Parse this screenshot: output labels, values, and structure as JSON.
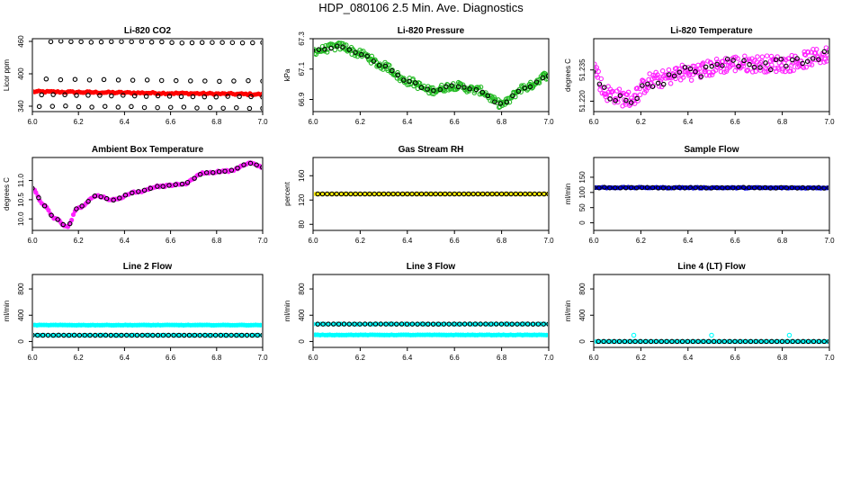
{
  "page_title": "HDP_080106  2.5 Min. Ave. Diagnostics",
  "chart_data": [
    {
      "type": "scatter",
      "title": "Li-820 CO2",
      "ylabel": "Licor ppm",
      "xlim": [
        6.0,
        7.0
      ],
      "ylim": [
        330,
        465
      ],
      "xticks": [
        "6.0",
        "6.2",
        "6.4",
        "6.6",
        "6.8",
        "7.0"
      ],
      "yticks": [
        {
          "v": 340,
          "label": "340"
        },
        {
          "v": 400,
          "label": "400"
        },
        {
          "v": 460,
          "label": "460"
        }
      ],
      "series": [
        {
          "name": "co2-main",
          "color": "#ff0000",
          "style": "filled",
          "gen": {
            "kind": "line",
            "x0": 6.0,
            "x1": 7.0,
            "y0": 367,
            "y1": 362,
            "noise": 1.5,
            "n": 110
          }
        },
        {
          "name": "co2-top",
          "color": "#000000",
          "style": "open",
          "gen": {
            "kind": "line",
            "x0": 6.08,
            "x1": 7.0,
            "y0": 460,
            "y1": 457,
            "noise": 1,
            "n": 22
          }
        },
        {
          "name": "co2-upper",
          "color": "#000000",
          "style": "open",
          "gen": {
            "kind": "line",
            "x0": 6.06,
            "x1": 7.0,
            "y0": 390,
            "y1": 386,
            "noise": 1,
            "n": 16
          }
        },
        {
          "name": "co2-mid",
          "color": "#000000",
          "style": "open",
          "gen": {
            "kind": "line",
            "x0": 6.04,
            "x1": 7.0,
            "y0": 361,
            "y1": 357,
            "noise": 1,
            "n": 20
          }
        },
        {
          "name": "co2-low",
          "color": "#000000",
          "style": "open",
          "gen": {
            "kind": "line",
            "x0": 6.03,
            "x1": 7.0,
            "y0": 340,
            "y1": 336,
            "noise": 1,
            "n": 18
          }
        }
      ]
    },
    {
      "type": "scatter",
      "title": "Li-820 Pressure",
      "ylabel": "kPa",
      "xlim": [
        6.0,
        7.0
      ],
      "ylim": [
        66.82,
        67.3
      ],
      "xticks": [
        "6.0",
        "6.2",
        "6.4",
        "6.6",
        "6.8",
        "7.0"
      ],
      "yticks": [
        {
          "v": 66.9,
          "label": "66.9"
        },
        {
          "v": 67.1,
          "label": "67.1"
        },
        {
          "v": 67.3,
          "label": "67.3"
        }
      ],
      "series": [
        {
          "name": "pressure-green",
          "color": "#22bb22",
          "style": "open",
          "gen": {
            "kind": "curve",
            "nodes": [
              [
                6.0,
                67.22
              ],
              [
                6.12,
                67.25
              ],
              [
                6.2,
                67.2
              ],
              [
                6.3,
                67.12
              ],
              [
                6.4,
                67.02
              ],
              [
                6.5,
                66.96
              ],
              [
                6.6,
                66.99
              ],
              [
                6.7,
                66.96
              ],
              [
                6.8,
                66.87
              ],
              [
                6.9,
                66.98
              ],
              [
                7.0,
                67.06
              ]
            ],
            "spread": 0.025,
            "n": 260
          }
        },
        {
          "name": "pressure-black",
          "color": "#000000",
          "style": "open",
          "gen": {
            "kind": "curve",
            "nodes": [
              [
                6.0,
                67.22
              ],
              [
                6.12,
                67.25
              ],
              [
                6.2,
                67.2
              ],
              [
                6.3,
                67.12
              ],
              [
                6.4,
                67.02
              ],
              [
                6.5,
                66.96
              ],
              [
                6.6,
                66.99
              ],
              [
                6.7,
                66.96
              ],
              [
                6.8,
                66.87
              ],
              [
                6.9,
                66.98
              ],
              [
                7.0,
                67.06
              ]
            ],
            "spread": 0.006,
            "n": 40
          }
        }
      ]
    },
    {
      "type": "scatter",
      "title": "Li-820 Temperature",
      "ylabel": "degrees C",
      "xlim": [
        6.0,
        7.0
      ],
      "ylim": [
        51.215,
        51.25
      ],
      "xticks": [
        "6.0",
        "6.2",
        "6.4",
        "6.6",
        "6.8",
        "7.0"
      ],
      "yticks": [
        {
          "v": 51.22,
          "label": "51.220"
        },
        {
          "v": 51.235,
          "label": "51.235"
        }
      ],
      "series": [
        {
          "name": "temp-magenta",
          "color": "#ff22ff",
          "style": "open",
          "gen": {
            "kind": "curve",
            "nodes": [
              [
                6.0,
                51.236
              ],
              [
                6.05,
                51.224
              ],
              [
                6.15,
                51.221
              ],
              [
                6.25,
                51.23
              ],
              [
                6.4,
                51.234
              ],
              [
                6.6,
                51.238
              ],
              [
                6.8,
                51.238
              ],
              [
                7.0,
                51.242
              ]
            ],
            "spread": 0.004,
            "n": 280
          }
        },
        {
          "name": "temp-black",
          "color": "#000000",
          "style": "open",
          "gen": {
            "kind": "curve",
            "nodes": [
              [
                6.0,
                51.236
              ],
              [
                6.05,
                51.224
              ],
              [
                6.15,
                51.221
              ],
              [
                6.25,
                51.23
              ],
              [
                6.4,
                51.234
              ],
              [
                6.6,
                51.238
              ],
              [
                6.8,
                51.238
              ],
              [
                7.0,
                51.242
              ]
            ],
            "spread": 0.003,
            "n": 45
          }
        }
      ]
    },
    {
      "type": "scatter",
      "title": "Ambient Box Temperature",
      "ylabel": "degrees C",
      "xlim": [
        6.0,
        7.0
      ],
      "ylim": [
        9.7,
        11.6
      ],
      "xticks": [
        "6.0",
        "6.2",
        "6.4",
        "6.6",
        "6.8",
        "7.0"
      ],
      "yticks": [
        {
          "v": 10.0,
          "label": "10.0"
        },
        {
          "v": 10.5,
          "label": "10.5"
        },
        {
          "v": 11.0,
          "label": "11.0"
        }
      ],
      "series": [
        {
          "name": "ambient-magenta",
          "color": "#ff22ff",
          "style": "filled",
          "gen": {
            "kind": "curve",
            "nodes": [
              [
                6.0,
                10.8
              ],
              [
                6.05,
                10.35
              ],
              [
                6.1,
                10.0
              ],
              [
                6.15,
                9.8
              ],
              [
                6.2,
                10.3
              ],
              [
                6.28,
                10.6
              ],
              [
                6.35,
                10.5
              ],
              [
                6.45,
                10.7
              ],
              [
                6.55,
                10.85
              ],
              [
                6.65,
                10.9
              ],
              [
                6.75,
                11.2
              ],
              [
                6.85,
                11.25
              ],
              [
                6.95,
                11.45
              ],
              [
                7.0,
                11.35
              ]
            ],
            "spread": 0.02,
            "n": 130
          }
        },
        {
          "name": "ambient-black",
          "color": "#000000",
          "style": "open",
          "gen": {
            "kind": "curve",
            "nodes": [
              [
                6.0,
                10.8
              ],
              [
                6.05,
                10.35
              ],
              [
                6.1,
                10.0
              ],
              [
                6.15,
                9.8
              ],
              [
                6.2,
                10.3
              ],
              [
                6.28,
                10.6
              ],
              [
                6.35,
                10.5
              ],
              [
                6.45,
                10.7
              ],
              [
                6.55,
                10.85
              ],
              [
                6.65,
                10.9
              ],
              [
                6.75,
                11.2
              ],
              [
                6.85,
                11.25
              ],
              [
                6.95,
                11.45
              ],
              [
                7.0,
                11.35
              ]
            ],
            "spread": 0.01,
            "n": 38
          }
        }
      ]
    },
    {
      "type": "scatter",
      "title": "Gas Stream RH",
      "ylabel": "percent",
      "xlim": [
        6.0,
        7.0
      ],
      "ylim": [
        70,
        190
      ],
      "xticks": [
        "6.0",
        "6.2",
        "6.4",
        "6.6",
        "6.8",
        "7.0"
      ],
      "yticks": [
        {
          "v": 80,
          "label": "80"
        },
        {
          "v": 120,
          "label": "120"
        },
        {
          "v": 160,
          "label": "160"
        }
      ],
      "series": [
        {
          "name": "rh-yellow",
          "color": "#ffee00",
          "style": "filled",
          "gen": {
            "kind": "line",
            "x0": 6.0,
            "x1": 7.0,
            "y0": 130,
            "y1": 130,
            "noise": 0,
            "n": 70
          }
        },
        {
          "name": "rh-black",
          "color": "#000000",
          "style": "open",
          "gen": {
            "kind": "line",
            "x0": 6.02,
            "x1": 7.0,
            "y0": 130,
            "y1": 130,
            "noise": 0,
            "n": 50
          }
        }
      ]
    },
    {
      "type": "scatter",
      "title": "Sample Flow",
      "ylabel": "ml/min",
      "xlim": [
        6.0,
        7.0
      ],
      "ylim": [
        -25,
        215
      ],
      "xticks": [
        "6.0",
        "6.2",
        "6.4",
        "6.6",
        "6.8",
        "7.0"
      ],
      "yticks": [
        {
          "v": 0,
          "label": "0"
        },
        {
          "v": 50,
          "label": "50"
        },
        {
          "v": 100,
          "label": "100"
        },
        {
          "v": 150,
          "label": "150"
        }
      ],
      "series": [
        {
          "name": "sample-blue",
          "color": "#0000dd",
          "style": "filled",
          "gen": {
            "kind": "line",
            "x0": 6.0,
            "x1": 7.0,
            "y0": 116,
            "y1": 115,
            "noise": 1.5,
            "n": 110
          }
        },
        {
          "name": "sample-black",
          "color": "#000000",
          "style": "open",
          "gen": {
            "kind": "line",
            "x0": 6.0,
            "x1": 7.0,
            "y0": 116,
            "y1": 115,
            "noise": 1,
            "n": 45
          }
        }
      ]
    },
    {
      "type": "scatter",
      "title": "Line 2 Flow",
      "ylabel": "ml/min",
      "xlim": [
        6.0,
        7.0
      ],
      "ylim": [
        -90,
        1020
      ],
      "xticks": [
        "6.0",
        "6.2",
        "6.4",
        "6.6",
        "6.8",
        "7.0"
      ],
      "yticks": [
        {
          "v": 0,
          "label": "0"
        },
        {
          "v": 400,
          "label": "400"
        },
        {
          "v": 800,
          "label": "800"
        }
      ],
      "series": [
        {
          "name": "line2-cyan-high",
          "color": "#00ffff",
          "style": "filled",
          "gen": {
            "kind": "line",
            "x0": 6.0,
            "x1": 7.0,
            "y0": 250,
            "y1": 250,
            "noise": 3,
            "n": 100
          }
        },
        {
          "name": "line2-cyan-low",
          "color": "#00ffff",
          "style": "filled",
          "gen": {
            "kind": "line",
            "x0": 6.0,
            "x1": 7.0,
            "y0": 95,
            "y1": 95,
            "noise": 2,
            "n": 60
          }
        },
        {
          "name": "line2-black",
          "color": "#000000",
          "style": "open",
          "gen": {
            "kind": "line",
            "x0": 6.0,
            "x1": 7.0,
            "y0": 95,
            "y1": 95,
            "noise": 1,
            "n": 45
          }
        }
      ]
    },
    {
      "type": "scatter",
      "title": "Line 3 Flow",
      "ylabel": "ml/min",
      "xlim": [
        6.0,
        7.0
      ],
      "ylim": [
        -90,
        1020
      ],
      "xticks": [
        "6.0",
        "6.2",
        "6.4",
        "6.6",
        "6.8",
        "7.0"
      ],
      "yticks": [
        {
          "v": 0,
          "label": "0"
        },
        {
          "v": 400,
          "label": "400"
        },
        {
          "v": 800,
          "label": "800"
        }
      ],
      "series": [
        {
          "name": "line3-cyan-low",
          "color": "#00ffff",
          "style": "filled",
          "gen": {
            "kind": "line",
            "x0": 6.0,
            "x1": 7.0,
            "y0": 100,
            "y1": 100,
            "noise": 3,
            "n": 100
          }
        },
        {
          "name": "line3-cyan-high",
          "color": "#00ffff",
          "style": "filled",
          "gen": {
            "kind": "line",
            "x0": 6.0,
            "x1": 7.0,
            "y0": 265,
            "y1": 265,
            "noise": 2,
            "n": 60
          }
        },
        {
          "name": "line3-black",
          "color": "#000000",
          "style": "open",
          "gen": {
            "kind": "line",
            "x0": 6.02,
            "x1": 7.0,
            "y0": 265,
            "y1": 265,
            "noise": 1,
            "n": 45
          }
        }
      ]
    },
    {
      "type": "scatter",
      "title": "Line 4 (LT) Flow",
      "ylabel": "ml/min",
      "xlim": [
        6.0,
        7.0
      ],
      "ylim": [
        -90,
        1020
      ],
      "xticks": [
        "6.0",
        "6.2",
        "6.4",
        "6.6",
        "6.8",
        "7.0"
      ],
      "yticks": [
        {
          "v": 0,
          "label": "0"
        },
        {
          "v": 400,
          "label": "400"
        },
        {
          "v": 800,
          "label": "800"
        }
      ],
      "series": [
        {
          "name": "line4-cyan",
          "color": "#00ffff",
          "style": "filled",
          "gen": {
            "kind": "line",
            "x0": 6.0,
            "x1": 7.0,
            "y0": 0,
            "y1": 0,
            "noise": 0,
            "n": 80
          }
        },
        {
          "name": "line4-black",
          "color": "#000000",
          "style": "open",
          "gen": {
            "kind": "line",
            "x0": 6.02,
            "x1": 7.0,
            "y0": 0,
            "y1": 0,
            "noise": 0,
            "n": 45
          }
        },
        {
          "name": "line4-spikes",
          "color": "#00ffff",
          "style": "open",
          "points": [
            [
              6.17,
              95
            ],
            [
              6.5,
              95
            ],
            [
              6.83,
              95
            ]
          ]
        }
      ]
    }
  ]
}
